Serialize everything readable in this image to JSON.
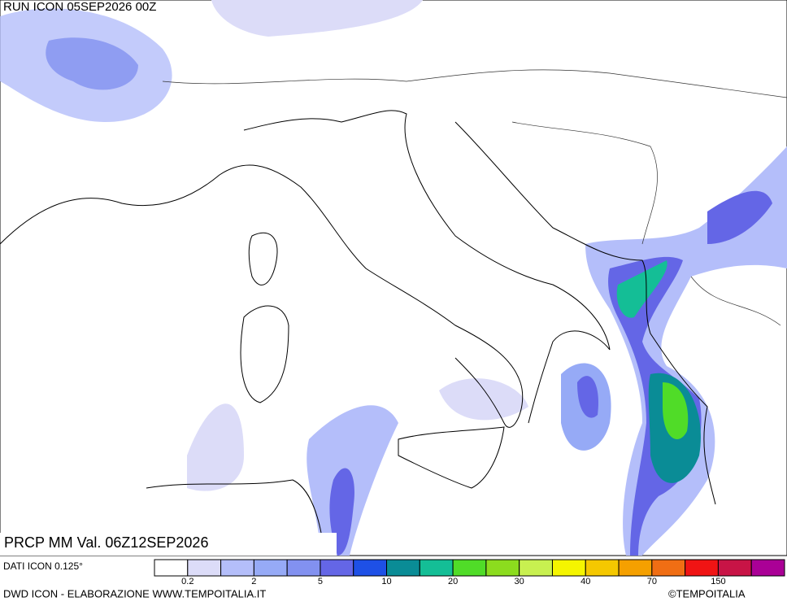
{
  "header": {
    "run": "RUN ICON 05SEP2026 00Z",
    "valid": "PRCP MM Val. 06Z12SEP2026"
  },
  "legend": {
    "source": "DATI ICON 0.125°",
    "colors": [
      "#ffffff",
      "#dcdcf8",
      "#b4befa",
      "#96aaf6",
      "#8291f0",
      "#6466e6",
      "#1e50e6",
      "#0a8c96",
      "#14be96",
      "#50dc28",
      "#8cdc1e",
      "#c8f050",
      "#f5f500",
      "#f5c800",
      "#f5a000",
      "#f06e14",
      "#f01414",
      "#c81446",
      "#aa0096"
    ],
    "labels": [
      0.2,
      2,
      5,
      10,
      20,
      30,
      40,
      70,
      150
    ]
  },
  "footer": {
    "credit": "DWD ICON - ELABORAZIONE WWW.TEMPOITALIA.IT",
    "copyright": "©TEMPOITALIA"
  }
}
